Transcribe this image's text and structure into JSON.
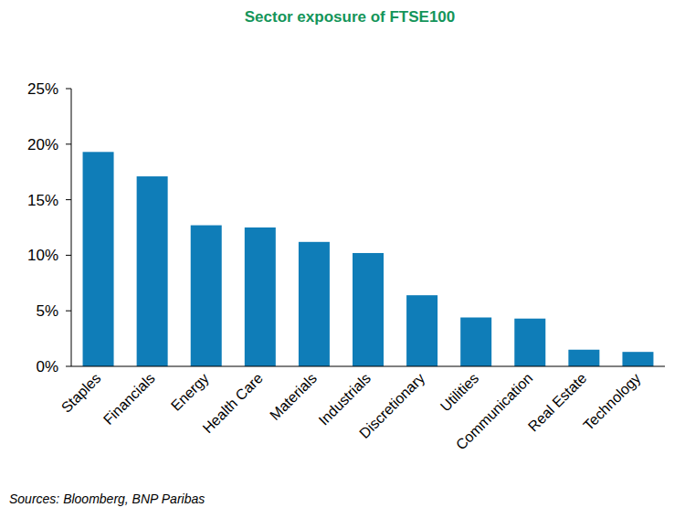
{
  "chart_data": {
    "type": "bar",
    "title": "Sector exposure of FTSE100",
    "categories": [
      "Staples",
      "Financials",
      "Energy",
      "Health Care",
      "Materials",
      "Industrials",
      "Discretionary",
      "Utilities",
      "Communication",
      "Real Estate",
      "Technology"
    ],
    "values": [
      19.3,
      17.1,
      12.7,
      12.5,
      11.2,
      10.2,
      6.4,
      4.4,
      4.3,
      1.5,
      1.3
    ],
    "color": "#0f7db8",
    "ylim": [
      0,
      25
    ],
    "yticks": [
      {
        "value": 0,
        "label": "0%"
      },
      {
        "value": 5,
        "label": "5%"
      },
      {
        "value": 10,
        "label": "10%"
      },
      {
        "value": 15,
        "label": "15%"
      },
      {
        "value": 20,
        "label": "20%"
      },
      {
        "value": 25,
        "label": "25%"
      }
    ],
    "grid": false,
    "source": "Sources: Bloomberg, BNP Paribas"
  }
}
